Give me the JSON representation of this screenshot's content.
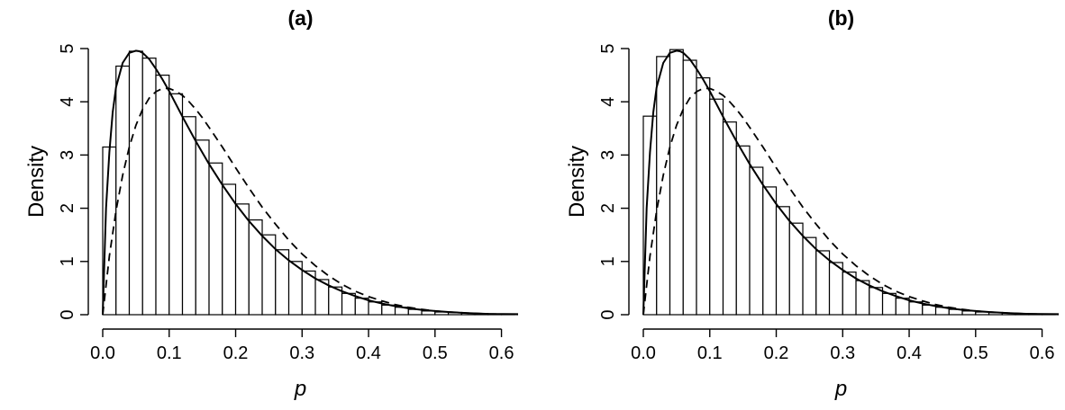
{
  "chart_data": [
    {
      "type": "bar",
      "title": "(a)",
      "xlabel": "p",
      "ylabel": "Density",
      "xlim": [
        0,
        0.625
      ],
      "ylim": [
        0,
        5
      ],
      "xticks": [
        "0.0",
        "0.1",
        "0.2",
        "0.3",
        "0.4",
        "0.5",
        "0.6"
      ],
      "yticks": [
        "0",
        "1",
        "2",
        "3",
        "4",
        "5"
      ],
      "bin_width": 0.02,
      "bins_start": [
        0.0,
        0.02,
        0.04,
        0.06,
        0.08,
        0.1,
        0.12,
        0.14,
        0.16,
        0.18,
        0.2,
        0.22,
        0.24,
        0.26,
        0.28,
        0.3,
        0.32,
        0.34,
        0.36,
        0.38,
        0.4,
        0.42,
        0.44,
        0.46,
        0.48,
        0.5,
        0.52,
        0.54,
        0.56,
        0.58,
        0.6
      ],
      "values": [
        3.15,
        4.67,
        4.95,
        4.82,
        4.5,
        4.15,
        3.72,
        3.28,
        2.85,
        2.45,
        2.08,
        1.78,
        1.5,
        1.22,
        1.0,
        0.82,
        0.66,
        0.52,
        0.4,
        0.31,
        0.24,
        0.18,
        0.14,
        0.1,
        0.07,
        0.05,
        0.04,
        0.03,
        0.02,
        0.01,
        0.01
      ],
      "series": [
        {
          "style": "solid",
          "x": [
            0.0,
            0.005,
            0.01,
            0.015,
            0.02,
            0.03,
            0.04,
            0.05,
            0.055,
            0.06,
            0.07,
            0.08,
            0.09,
            0.1,
            0.12,
            0.14,
            0.16,
            0.18,
            0.2,
            0.22,
            0.24,
            0.26,
            0.28,
            0.3,
            0.32,
            0.34,
            0.36,
            0.38,
            0.4,
            0.42,
            0.44,
            0.46,
            0.48,
            0.5,
            0.52,
            0.55,
            0.58,
            0.625
          ],
          "values": [
            0.0,
            2.0,
            3.05,
            3.8,
            4.27,
            4.73,
            4.92,
            4.96,
            4.95,
            4.92,
            4.8,
            4.62,
            4.42,
            4.2,
            3.72,
            3.26,
            2.83,
            2.44,
            2.08,
            1.76,
            1.48,
            1.23,
            1.02,
            0.84,
            0.68,
            0.55,
            0.44,
            0.35,
            0.27,
            0.21,
            0.16,
            0.12,
            0.09,
            0.07,
            0.05,
            0.03,
            0.015,
            0.01
          ]
        },
        {
          "style": "dashed",
          "x": [
            0.0,
            0.01,
            0.02,
            0.03,
            0.04,
            0.05,
            0.06,
            0.07,
            0.08,
            0.09,
            0.1,
            0.11,
            0.12,
            0.13,
            0.14,
            0.15,
            0.16,
            0.18,
            0.2,
            0.22,
            0.24,
            0.26,
            0.28,
            0.3,
            0.32,
            0.34,
            0.36,
            0.38,
            0.4,
            0.42,
            0.44,
            0.46,
            0.48,
            0.5,
            0.52,
            0.55,
            0.58,
            0.625
          ],
          "values": [
            0.0,
            1.1,
            1.95,
            2.62,
            3.15,
            3.56,
            3.86,
            4.07,
            4.19,
            4.25,
            4.25,
            4.2,
            4.12,
            4.0,
            3.86,
            3.7,
            3.52,
            3.15,
            2.76,
            2.38,
            2.02,
            1.7,
            1.4,
            1.14,
            0.92,
            0.73,
            0.57,
            0.44,
            0.34,
            0.26,
            0.19,
            0.14,
            0.1,
            0.07,
            0.05,
            0.03,
            0.015,
            0.005
          ]
        }
      ]
    },
    {
      "type": "bar",
      "title": "(b)",
      "xlabel": "p",
      "ylabel": "Density",
      "xlim": [
        0,
        0.625
      ],
      "ylim": [
        0,
        5
      ],
      "xticks": [
        "0.0",
        "0.1",
        "0.2",
        "0.3",
        "0.4",
        "0.5",
        "0.6"
      ],
      "yticks": [
        "0",
        "1",
        "2",
        "3",
        "4",
        "5"
      ],
      "bin_width": 0.02,
      "bins_start": [
        0.0,
        0.02,
        0.04,
        0.06,
        0.08,
        0.1,
        0.12,
        0.14,
        0.16,
        0.18,
        0.2,
        0.22,
        0.24,
        0.26,
        0.28,
        0.3,
        0.32,
        0.34,
        0.36,
        0.38,
        0.4,
        0.42,
        0.44,
        0.46,
        0.48,
        0.5,
        0.52,
        0.54,
        0.56,
        0.58,
        0.6
      ],
      "values": [
        3.73,
        4.85,
        4.98,
        4.78,
        4.45,
        4.05,
        3.62,
        3.17,
        2.77,
        2.4,
        2.03,
        1.72,
        1.45,
        1.2,
        0.98,
        0.8,
        0.64,
        0.51,
        0.4,
        0.31,
        0.24,
        0.18,
        0.14,
        0.1,
        0.07,
        0.05,
        0.04,
        0.03,
        0.02,
        0.01,
        0.01
      ],
      "series": [
        {
          "style": "solid",
          "x": [
            0.0,
            0.005,
            0.01,
            0.015,
            0.02,
            0.03,
            0.04,
            0.05,
            0.055,
            0.06,
            0.07,
            0.08,
            0.09,
            0.1,
            0.12,
            0.14,
            0.16,
            0.18,
            0.2,
            0.22,
            0.24,
            0.26,
            0.28,
            0.3,
            0.32,
            0.34,
            0.36,
            0.38,
            0.4,
            0.42,
            0.44,
            0.46,
            0.48,
            0.5,
            0.52,
            0.55,
            0.58,
            0.625
          ],
          "values": [
            0.0,
            2.0,
            3.05,
            3.8,
            4.27,
            4.73,
            4.92,
            4.96,
            4.95,
            4.92,
            4.8,
            4.62,
            4.42,
            4.2,
            3.72,
            3.26,
            2.83,
            2.44,
            2.08,
            1.76,
            1.48,
            1.23,
            1.02,
            0.84,
            0.68,
            0.55,
            0.44,
            0.35,
            0.27,
            0.21,
            0.16,
            0.12,
            0.09,
            0.07,
            0.05,
            0.03,
            0.015,
            0.01
          ]
        },
        {
          "style": "dashed",
          "x": [
            0.0,
            0.01,
            0.02,
            0.03,
            0.04,
            0.05,
            0.06,
            0.07,
            0.08,
            0.09,
            0.1,
            0.11,
            0.12,
            0.13,
            0.14,
            0.15,
            0.16,
            0.18,
            0.2,
            0.22,
            0.24,
            0.26,
            0.28,
            0.3,
            0.32,
            0.34,
            0.36,
            0.38,
            0.4,
            0.42,
            0.44,
            0.46,
            0.48,
            0.5,
            0.52,
            0.55,
            0.58,
            0.625
          ],
          "values": [
            0.0,
            1.1,
            1.95,
            2.62,
            3.15,
            3.56,
            3.86,
            4.07,
            4.19,
            4.25,
            4.25,
            4.2,
            4.12,
            4.0,
            3.86,
            3.7,
            3.52,
            3.15,
            2.76,
            2.38,
            2.02,
            1.7,
            1.4,
            1.14,
            0.92,
            0.73,
            0.57,
            0.44,
            0.34,
            0.26,
            0.19,
            0.14,
            0.1,
            0.07,
            0.05,
            0.03,
            0.015,
            0.005
          ]
        }
      ]
    }
  ]
}
